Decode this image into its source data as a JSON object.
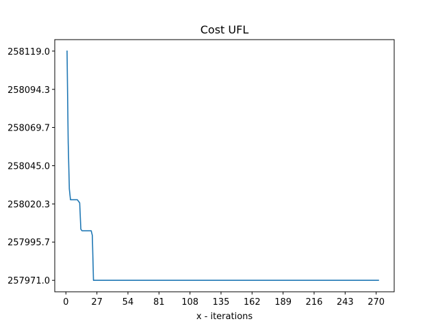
{
  "chart_data": {
    "type": "line",
    "title": "Cost UFL",
    "xlabel": "x - iterations",
    "ylabel": "",
    "xlim": [
      -9.7,
      285.7
    ],
    "ylim": [
      257963.6,
      258126.4
    ],
    "xticks": [
      0,
      27,
      54,
      81,
      108,
      135,
      162,
      189,
      216,
      243,
      270
    ],
    "yticks": [
      257971.0,
      257995.7,
      258020.3,
      258045.0,
      258069.7,
      258094.3,
      258119.0
    ],
    "ytick_labels": [
      "257971.0",
      "257995.7",
      "258020.3",
      "258045.0",
      "258069.7",
      "258094.3",
      "258119.0"
    ],
    "grid": false,
    "series": [
      {
        "name": "",
        "color": "#1f77b4",
        "x": [
          1,
          2,
          3,
          4,
          5,
          10,
          12,
          13,
          14,
          16,
          22,
          23,
          24,
          272
        ],
        "y": [
          258119.0,
          258060.0,
          258030.0,
          258023.0,
          258023.0,
          258023.0,
          258021.0,
          258004.0,
          258003.0,
          258003.0,
          258003.0,
          258000.0,
          257971.0,
          257971.0
        ]
      }
    ]
  }
}
